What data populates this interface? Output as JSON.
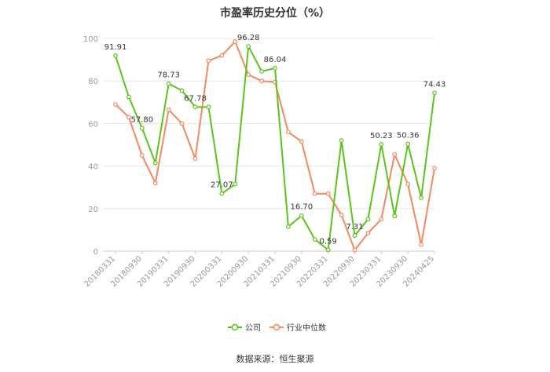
{
  "title": "市盈率历史分位（%）",
  "source": "数据来源：恒生聚源",
  "colors": {
    "company": "#5bc41b",
    "industry": "#f4895f",
    "grid": "#e6e6e6",
    "axis": "#999999"
  },
  "chart_data": {
    "type": "line",
    "title": "市盈率历史分位（%）",
    "ylim": [
      0,
      100
    ],
    "yticks": [
      0,
      20,
      40,
      60,
      80,
      100
    ],
    "grid": true,
    "legend": "bottom",
    "xlabels": [
      "20180331",
      "20180930",
      "20190331",
      "20190930",
      "20200331",
      "20200930",
      "20210331",
      "20210930",
      "20220331",
      "20220930",
      "20230331",
      "20230930",
      "20240425"
    ],
    "x": [
      "20180331",
      "20180630",
      "20180930",
      "20181231",
      "20190331",
      "20190630",
      "20190930",
      "20191231",
      "20200331",
      "20200630",
      "20200930",
      "20201231",
      "20210331",
      "20210630",
      "20210930",
      "20211231",
      "20220331",
      "20220630",
      "20220930",
      "20221231",
      "20230331",
      "20230630",
      "20230930",
      "20231231",
      "20240425"
    ],
    "series": [
      {
        "name": "公司",
        "values": [
          91.91,
          72.5,
          57.8,
          41.5,
          78.73,
          75.5,
          67.78,
          67.78,
          27.07,
          31.5,
          96.28,
          84.5,
          86.04,
          11.5,
          16.7,
          5.5,
          0.59,
          52.0,
          7.31,
          15.0,
          50.23,
          16.5,
          50.36,
          25.0,
          74.43
        ]
      },
      {
        "name": "行业中位数",
        "values": [
          69.0,
          63.0,
          45.0,
          32.0,
          66.5,
          60.0,
          43.5,
          89.5,
          92.0,
          98.5,
          83.0,
          80.0,
          79.5,
          56.0,
          51.5,
          27.0,
          27.0,
          17.0,
          0.5,
          8.5,
          15.0,
          45.5,
          31.5,
          3.0,
          39.0
        ]
      }
    ],
    "data_labels": [
      {
        "index": 0,
        "text": "91.91"
      },
      {
        "index": 2,
        "text": "57.80"
      },
      {
        "index": 4,
        "text": "78.73"
      },
      {
        "index": 6,
        "text": "67.78"
      },
      {
        "index": 8,
        "text": "27.07"
      },
      {
        "index": 10,
        "text": "96.28"
      },
      {
        "index": 12,
        "text": "86.04"
      },
      {
        "index": 14,
        "text": "16.70"
      },
      {
        "index": 16,
        "text": "0.59"
      },
      {
        "index": 18,
        "text": "7.31"
      },
      {
        "index": 20,
        "text": "50.23"
      },
      {
        "index": 22,
        "text": "50.36"
      },
      {
        "index": 24,
        "text": "74.43"
      }
    ]
  }
}
